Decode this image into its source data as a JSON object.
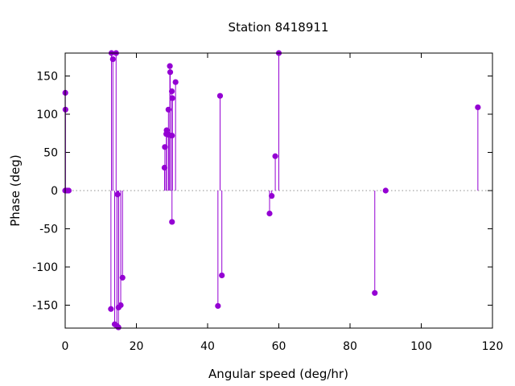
{
  "chart_data": {
    "type": "scatter",
    "style": "impulses-with-points",
    "title": "Station 8418911",
    "xlabel": "Angular speed (deg/hr)",
    "ylabel": "Phase (deg)",
    "xlim": [
      0,
      120
    ],
    "ylim": [
      -180,
      180
    ],
    "xticks": [
      0,
      20,
      40,
      60,
      80,
      100,
      120
    ],
    "yticks": [
      -150,
      -100,
      -50,
      0,
      50,
      100,
      150
    ],
    "color": "#9400d3",
    "zero_line": "dotted",
    "points": [
      {
        "x": 0.0,
        "y": 0
      },
      {
        "x": 0.04,
        "y": 128
      },
      {
        "x": 0.08,
        "y": 106
      },
      {
        "x": 0.5,
        "y": 0
      },
      {
        "x": 1.0,
        "y": 0
      },
      {
        "x": 12.85,
        "y": -155
      },
      {
        "x": 13.0,
        "y": 180
      },
      {
        "x": 13.4,
        "y": 172
      },
      {
        "x": 13.9,
        "y": -175
      },
      {
        "x": 14.3,
        "y": 180
      },
      {
        "x": 14.5,
        "y": -177
      },
      {
        "x": 14.7,
        "y": -5
      },
      {
        "x": 14.96,
        "y": -179
      },
      {
        "x": 15.0,
        "y": -153
      },
      {
        "x": 15.6,
        "y": -150
      },
      {
        "x": 16.1,
        "y": -114
      },
      {
        "x": 27.9,
        "y": 30
      },
      {
        "x": 28.0,
        "y": 57
      },
      {
        "x": 28.4,
        "y": 74
      },
      {
        "x": 28.5,
        "y": 79
      },
      {
        "x": 29.0,
        "y": 106
      },
      {
        "x": 29.1,
        "y": 73
      },
      {
        "x": 29.4,
        "y": 163
      },
      {
        "x": 29.5,
        "y": 155
      },
      {
        "x": 29.96,
        "y": 130
      },
      {
        "x": 30.0,
        "y": 72
      },
      {
        "x": 30.0,
        "y": -41
      },
      {
        "x": 30.1,
        "y": 121
      },
      {
        "x": 31.0,
        "y": 142
      },
      {
        "x": 42.9,
        "y": -151
      },
      {
        "x": 43.5,
        "y": 124
      },
      {
        "x": 44.0,
        "y": -111
      },
      {
        "x": 57.4,
        "y": -30
      },
      {
        "x": 58.0,
        "y": -7
      },
      {
        "x": 59.0,
        "y": 45
      },
      {
        "x": 60.0,
        "y": 180
      },
      {
        "x": 86.95,
        "y": -134
      },
      {
        "x": 90.0,
        "y": 0
      },
      {
        "x": 115.9,
        "y": 109
      }
    ]
  }
}
